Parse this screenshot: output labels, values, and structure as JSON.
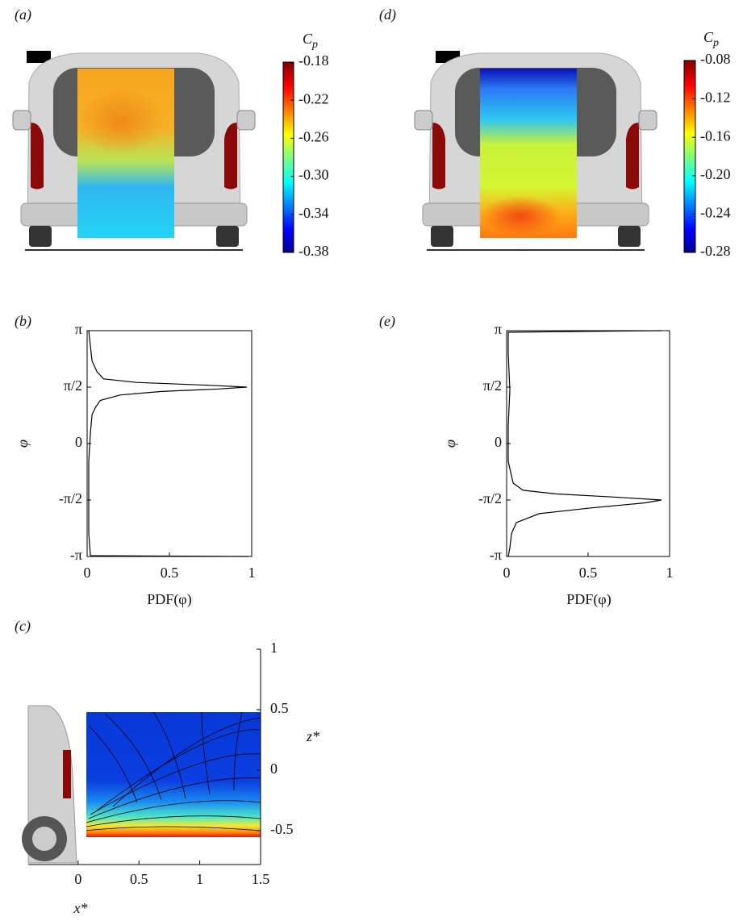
{
  "chart_data": [
    {
      "type": "colormap",
      "panel": "(a)",
      "colorbar_label": {
        "main": "C",
        "sub": "p"
      },
      "ylim": [
        -0.38,
        -0.18
      ],
      "yticks": [
        -0.18,
        -0.22,
        -0.26,
        {
          "value": -0.3,
          "label": "-0.30"
        },
        -0.34,
        -0.38
      ]
    },
    {
      "type": "colormap",
      "panel": "(d)",
      "colorbar_label": {
        "main": "C",
        "sub": "p"
      },
      "ylim": [
        -0.28,
        -0.08
      ],
      "yticks": [
        -0.08,
        -0.12,
        -0.16,
        {
          "value": -0.2,
          "label": "-0.20"
        },
        -0.24,
        -0.28
      ]
    },
    {
      "type": "pdf",
      "panel": "(b)",
      "xlabel": "PDF(φ)",
      "ylabel": "φ",
      "xlim": [
        0,
        1
      ],
      "xticks": [
        0,
        0.5,
        1
      ],
      "ylim": [
        -3.1416,
        3.1416
      ],
      "yticks": [
        {
          "value": -3.1416,
          "label": "-π"
        },
        {
          "value": -1.5708,
          "label": "-π/2"
        },
        0,
        {
          "value": 1.5708,
          "label": "π/2"
        },
        {
          "value": 3.1416,
          "label": "π"
        }
      ],
      "y": [
        -3.1416,
        -3.12,
        -2.5,
        -1.5,
        -0.5,
        0.3,
        0.8,
        1.0,
        1.2,
        1.35,
        1.45,
        1.52,
        1.57,
        1.62,
        1.7,
        1.8,
        2.0,
        2.3,
        2.7,
        3.1416
      ],
      "values": [
        0.98,
        0.02,
        0.01,
        0.01,
        0.01,
        0.02,
        0.03,
        0.05,
        0.08,
        0.2,
        0.45,
        0.8,
        0.97,
        0.75,
        0.3,
        0.1,
        0.06,
        0.03,
        0.02,
        0.01
      ]
    },
    {
      "type": "pdf",
      "panel": "(e)",
      "xlabel": "PDF(φ)",
      "ylabel": "φ",
      "xlim": [
        0,
        1
      ],
      "xticks": [
        0,
        0.5,
        1
      ],
      "ylim": [
        -3.1416,
        3.1416
      ],
      "yticks": [
        {
          "value": -3.1416,
          "label": "-π"
        },
        {
          "value": -1.5708,
          "label": "-π/2"
        },
        0,
        {
          "value": 1.5708,
          "label": "π/2"
        },
        {
          "value": 3.1416,
          "label": "π"
        }
      ],
      "y": [
        -3.1416,
        -2.9,
        -2.5,
        -2.2,
        -1.95,
        -1.8,
        -1.65,
        -1.57,
        -1.5,
        -1.4,
        -1.3,
        -1.1,
        -0.5,
        0.5,
        1.5,
        2.5,
        3.1,
        3.1416
      ],
      "values": [
        0.01,
        0.02,
        0.03,
        0.06,
        0.2,
        0.5,
        0.85,
        0.95,
        0.7,
        0.3,
        0.1,
        0.04,
        0.01,
        0.01,
        0.02,
        0.01,
        0.01,
        0.95
      ]
    },
    {
      "type": "streamlines",
      "panel": "(c)",
      "xlabel": "x*",
      "ylabel": "z*",
      "xlim": [
        -0.41,
        1.5
      ],
      "xticks": [
        0,
        0.5,
        1,
        1.5
      ],
      "ylim": [
        -0.78,
        1
      ],
      "yticks": [
        -0.5,
        0,
        0.5,
        1
      ]
    }
  ]
}
